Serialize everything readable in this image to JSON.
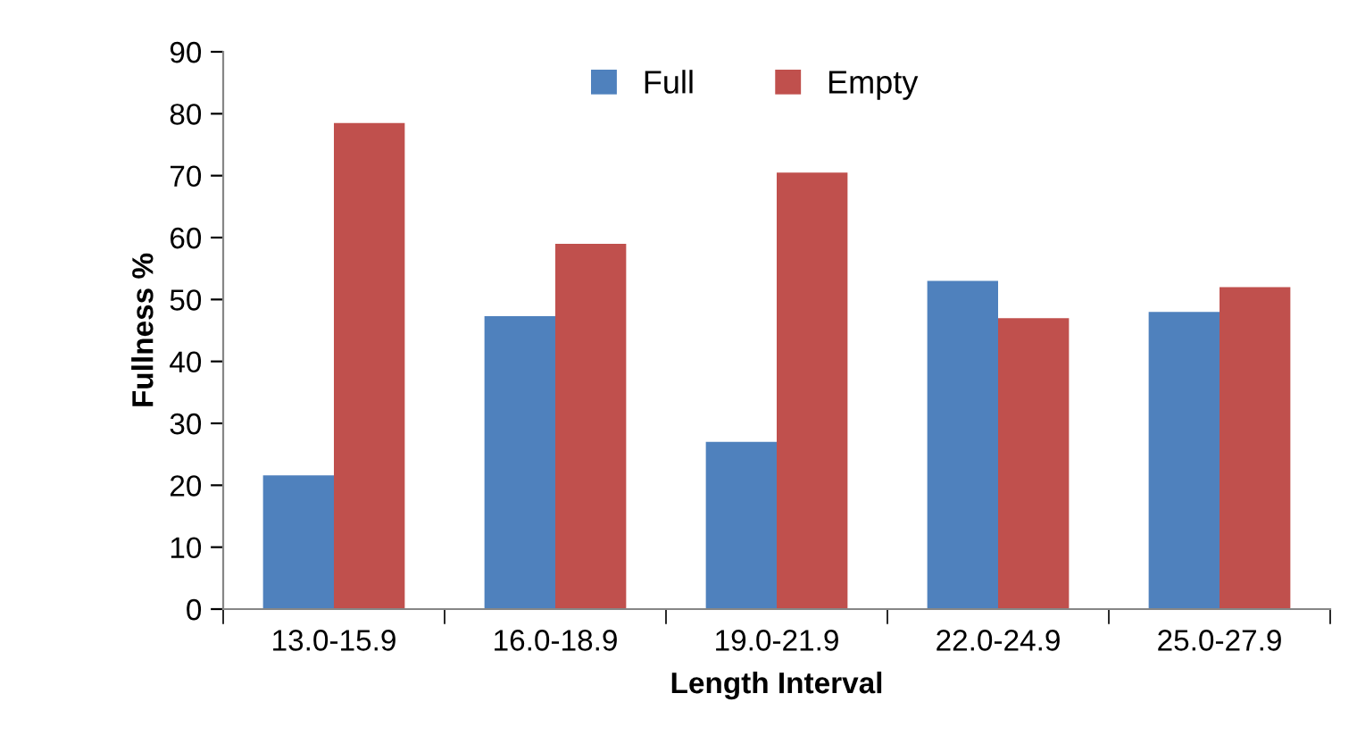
{
  "chart_data": {
    "type": "bar",
    "xlabel": "Length Interval",
    "ylabel": "Fullness %",
    "categories": [
      "13.0-15.9",
      "16.0-18.9",
      "19.0-21.9",
      "22.0-24.9",
      "25.0-27.9"
    ],
    "series": [
      {
        "name": "Full",
        "color": "#4f81bd",
        "values": [
          21.6,
          47.3,
          27,
          53,
          48
        ]
      },
      {
        "name": "Empty",
        "color": "#c0504d",
        "values": [
          78.5,
          59,
          70.5,
          47,
          52
        ]
      }
    ],
    "ylim": [
      0,
      90
    ],
    "yticks": [
      0,
      10,
      20,
      30,
      40,
      50,
      60,
      70,
      80,
      90
    ],
    "grid": false,
    "legend": "top"
  }
}
